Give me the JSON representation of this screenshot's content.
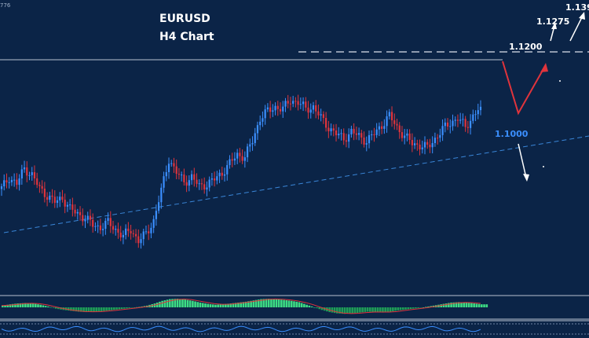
{
  "header": {
    "title": "EURUSD",
    "subtitle": "H4 Chart",
    "corner_tag": "776"
  },
  "levels": {
    "resistance": "1.1200",
    "support": "1.1000",
    "target1": "1.1275",
    "target2": "1.139"
  },
  "colors": {
    "background": "#0b2447",
    "bull": "#3b8fff",
    "bear": "#e0343c",
    "trendline": "#3a86d8",
    "resistance_line": "#b9c2d0",
    "forecast_main": "#e0343c",
    "forecast_alt": "#ffffff",
    "osc_pos": "#3ddc84",
    "osc_neg": "#1f9e57",
    "signal": "#e0343c",
    "lower_line": "#3b8fff"
  },
  "chart_data": {
    "type": "candlestick",
    "title": "EURUSD",
    "subtitle": "H4 Chart",
    "xlabel": "",
    "ylabel": "",
    "ylim": [
      1.078,
      1.142
    ],
    "grid": false,
    "resistance_level": 1.12,
    "support_label_level": 1.1,
    "forecast_targets": [
      1.1275,
      1.139
    ],
    "close_path": [
      1.1005,
      1.103,
      1.1015,
      1.105,
      1.1035,
      1.1005,
      1.099,
      1.0975,
      1.0985,
      1.096,
      1.095,
      1.094,
      1.0925,
      1.092,
      1.093,
      1.0915,
      1.09,
      1.0915,
      1.089,
      1.0905,
      1.0935,
      1.1,
      1.107,
      1.104,
      1.102,
      1.103,
      1.101,
      1.1015,
      1.1025,
      1.104,
      1.106,
      1.108,
      1.1075,
      1.111,
      1.116,
      1.1175,
      1.1185,
      1.118,
      1.12,
      1.1195,
      1.118,
      1.1185,
      1.116,
      1.114,
      1.1125,
      1.1115,
      1.113,
      1.112,
      1.111,
      1.1125,
      1.1145,
      1.1165,
      1.114,
      1.112,
      1.1105,
      1.11,
      1.1095,
      1.1115,
      1.1135,
      1.115,
      1.116,
      1.114,
      1.1165,
      1.1185
    ]
  },
  "oscillator_data": {
    "values": [
      0.2,
      0.35,
      0.45,
      0.5,
      0.45,
      0.3,
      0.1,
      -0.15,
      -0.3,
      -0.4,
      -0.5,
      -0.55,
      -0.5,
      -0.45,
      -0.35,
      -0.25,
      -0.15,
      -0.05,
      0.05,
      0.2,
      0.45,
      0.75,
      0.95,
      1.0,
      0.9,
      0.75,
      0.55,
      0.4,
      0.3,
      0.35,
      0.45,
      0.55,
      0.65,
      0.8,
      0.95,
      1.0,
      0.95,
      0.85,
      0.75,
      0.6,
      0.3,
      0.0,
      -0.3,
      -0.55,
      -0.7,
      -0.75,
      -0.7,
      -0.6,
      -0.5,
      -0.55,
      -0.6,
      -0.5,
      -0.35,
      -0.25,
      -0.15,
      -0.05,
      0.1,
      0.25,
      0.4,
      0.55,
      0.6,
      0.55,
      0.45,
      0.35
    ]
  }
}
